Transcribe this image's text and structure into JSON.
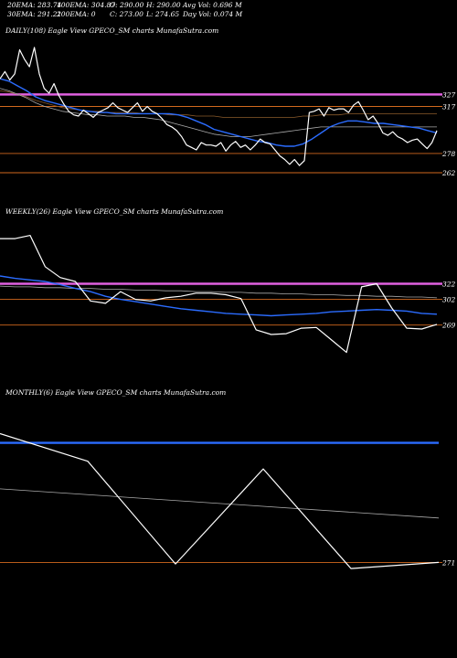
{
  "header": {
    "row1": [
      "20EMA: 283.74",
      "100EMA: 304.87",
      "O: 290.00",
      "H: 290.00",
      "Avg Vol: 0.696  M"
    ],
    "row2": [
      "30EMA: 291.21",
      "200EMA: 0",
      "C: 273.00",
      "L: 274.65",
      "Day Vol: 0.074  M"
    ]
  },
  "chart_data": [
    {
      "type": "line",
      "title": "DAILY(108) Eagle   View  GPECO_SM charts MunafaSutra.com",
      "ylim": [
        240,
        372
      ],
      "levels": [
        {
          "value": 327,
          "label": "327",
          "color": "#e060e0"
        },
        {
          "value": 317,
          "label": "317",
          "color": "#d2691e"
        },
        {
          "value": 278,
          "label": "278",
          "color": "#d2691e"
        },
        {
          "value": 262,
          "label": "262",
          "color": "#d2691e"
        }
      ],
      "series": [
        {
          "color": "#ffffff",
          "values": [
            340,
            346,
            339,
            344,
            364,
            356,
            350,
            366,
            344,
            332,
            328,
            336,
            326,
            319,
            313,
            310,
            309,
            314,
            311,
            308,
            312,
            314,
            316,
            320,
            316,
            314,
            312,
            316,
            320,
            313,
            317,
            313,
            311,
            307,
            302,
            300,
            297,
            292,
            285,
            283,
            281,
            287,
            285,
            285,
            284,
            287,
            280,
            285,
            288,
            283,
            285,
            281,
            285,
            290,
            287,
            286,
            281,
            276,
            273,
            269,
            273,
            268,
            272,
            312,
            313,
            315,
            309,
            316,
            314,
            315,
            315,
            312,
            318,
            321,
            314,
            306,
            309,
            303,
            295,
            293,
            296,
            292,
            290,
            287,
            289,
            290,
            286,
            282,
            287,
            297
          ]
        },
        {
          "color": "#2b6cff",
          "values": [
            340,
            338,
            334,
            330,
            325,
            322,
            320,
            318,
            316,
            314,
            313,
            312,
            312,
            311,
            311,
            311,
            311,
            311,
            311,
            311,
            310,
            308,
            305,
            302,
            298,
            296,
            294,
            292,
            290,
            288,
            287,
            285,
            284,
            284,
            286,
            290,
            295,
            300,
            303,
            305,
            305,
            304,
            303,
            303,
            302,
            301,
            300,
            299,
            297,
            295
          ]
        },
        {
          "color": "#aaaaaa",
          "values": [
            332,
            330,
            327,
            324,
            320,
            317,
            315,
            313,
            312,
            311,
            310,
            310,
            309,
            309,
            309,
            308,
            308,
            307,
            306,
            304,
            302,
            300,
            298,
            296,
            294,
            293,
            292,
            292,
            292,
            293,
            294,
            295,
            296,
            297,
            298,
            299,
            300,
            300,
            300,
            300,
            300,
            300,
            300,
            300,
            300,
            300,
            300,
            300,
            300,
            300
          ]
        },
        {
          "color": "#8b5a2b",
          "values": [
            330,
            329,
            327,
            325,
            322,
            320,
            318,
            316,
            315,
            314,
            313,
            313,
            312,
            312,
            312,
            312,
            311,
            311,
            311,
            310,
            310,
            310,
            309,
            309,
            309,
            308,
            308,
            308,
            308,
            308,
            308,
            308,
            308,
            308,
            309,
            309,
            310,
            310,
            310,
            311,
            311,
            311,
            311,
            311,
            311,
            311,
            311,
            311,
            311,
            311
          ]
        }
      ]
    },
    {
      "type": "line",
      "title": "WEEKLY(26) Eagle   View  GPECO_SM charts MunafaSutra.com",
      "ylim": [
        196,
        400
      ],
      "levels": [
        {
          "value": 322,
          "label": "322",
          "color": "#e060e0"
        },
        {
          "value": 302,
          "label": "302",
          "color": "#d2691e"
        },
        {
          "value": 269,
          "label": "269",
          "color": "#d2691e"
        }
      ],
      "series": [
        {
          "color": "#ffffff",
          "values": [
            380,
            380,
            384,
            344,
            330,
            325,
            300,
            297,
            312,
            302,
            300,
            304,
            306,
            310,
            310,
            308,
            303,
            263,
            257,
            258,
            265,
            266,
            250,
            234,
            318,
            322,
            291,
            265,
            264,
            270
          ]
        },
        {
          "color": "#2b6cff",
          "values": [
            332,
            329,
            327,
            325,
            321,
            316,
            312,
            306,
            302,
            299,
            296,
            293,
            290,
            288,
            286,
            284,
            283,
            282,
            281,
            282,
            283,
            284,
            286,
            287,
            288,
            289,
            288,
            287,
            284,
            283
          ]
        },
        {
          "color": "#aaaaaa",
          "values": [
            319,
            318,
            318,
            317,
            317,
            316,
            316,
            315,
            315,
            314,
            314,
            313,
            313,
            312,
            312,
            311,
            311,
            310,
            310,
            309,
            309,
            308,
            308,
            307,
            307,
            306,
            306,
            305,
            305,
            304
          ]
        }
      ]
    },
    {
      "type": "line",
      "title": "MONTHLY(6) Eagle   View  GPECO_SM charts MunafaSutra.com",
      "ylim": [
        245,
        375
      ],
      "levels": [
        {
          "value": 271,
          "label": "271",
          "color": "#d2691e"
        }
      ],
      "series": [
        {
          "color": "#ffffff",
          "values": [
            355,
            337,
            270,
            332,
            267,
            271
          ]
        },
        {
          "color": "#2b6cff",
          "values": [
            349,
            349
          ]
        },
        {
          "color": "#aaaaaa",
          "values": [
            319,
            300
          ]
        }
      ]
    }
  ]
}
